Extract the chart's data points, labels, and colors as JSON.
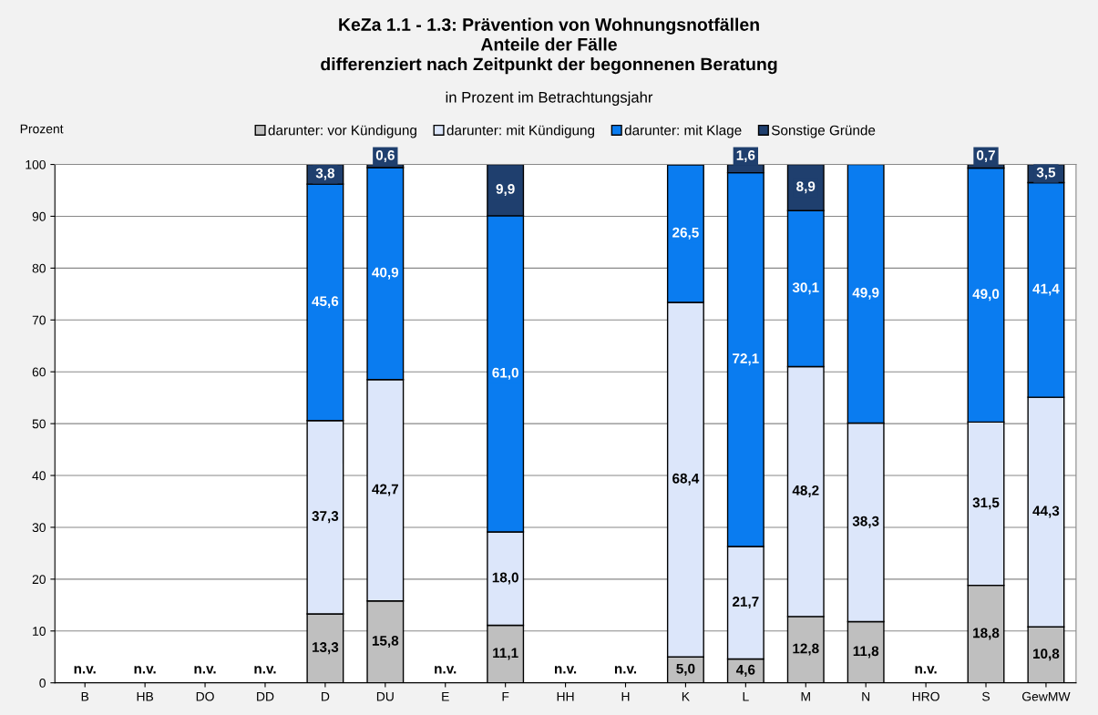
{
  "chart_data": {
    "type": "bar",
    "stacked": true,
    "title": "KeZa 1.1 - 1.3: Prävention von Wohnungsnotfällen\nAnteile der Fälle\ndifferenziert nach Zeitpunkt der begonnenen Beratung",
    "subtitle": "in Prozent im Betrachtungsjahr",
    "ylabel": "Prozent",
    "categories": [
      "B",
      "HB",
      "DO",
      "DD",
      "D",
      "DU",
      "E",
      "F",
      "HH",
      "H",
      "K",
      "L",
      "M",
      "N",
      "HRO",
      "S",
      "GewMW"
    ],
    "series": [
      {
        "name": "darunter: vor Kündigung",
        "color": "#bfbfbf",
        "values": [
          null,
          null,
          null,
          null,
          13.3,
          15.8,
          null,
          11.1,
          null,
          null,
          5.0,
          4.6,
          12.8,
          11.8,
          null,
          18.8,
          10.8
        ],
        "value_labels": [
          "n.v.",
          "n.v.",
          "n.v.",
          "n.v.",
          "13,3",
          "15,8",
          "n.v.",
          "11,1",
          "n.v.",
          "n.v.",
          "5,0",
          "4,6",
          "12,8",
          "11,8",
          "n.v.",
          "18,8",
          "10,8"
        ]
      },
      {
        "name": "darunter: mit Kündigung",
        "color": "#dce6fa",
        "values": [
          null,
          null,
          null,
          null,
          37.3,
          42.7,
          null,
          18.0,
          null,
          null,
          68.4,
          21.7,
          48.2,
          38.3,
          null,
          31.5,
          44.3
        ],
        "value_labels": [
          null,
          null,
          null,
          null,
          "37,3",
          "42,7",
          null,
          "18,0",
          null,
          null,
          "68,4",
          "21,7",
          "48,2",
          "38,3",
          null,
          "31,5",
          "44,3"
        ]
      },
      {
        "name": "darunter: mit Klage",
        "color": "#0a7cf0",
        "values": [
          null,
          null,
          null,
          null,
          45.6,
          40.9,
          null,
          61.0,
          null,
          null,
          26.5,
          72.1,
          30.1,
          49.9,
          null,
          49.0,
          41.4
        ],
        "value_labels": [
          null,
          null,
          null,
          null,
          "45,6",
          "40,9",
          null,
          "61,0",
          null,
          null,
          "26,5",
          "72,1",
          "30,1",
          "49,9",
          null,
          "49,0",
          "41,4"
        ]
      },
      {
        "name": "Sonstige Gründe",
        "color": "#1f3f6e",
        "values": [
          null,
          null,
          null,
          null,
          3.8,
          0.6,
          null,
          9.9,
          null,
          null,
          null,
          1.6,
          8.9,
          null,
          null,
          0.7,
          3.5
        ],
        "value_labels": [
          null,
          null,
          null,
          null,
          "3,8",
          "0,6",
          null,
          "9,9",
          null,
          null,
          null,
          "1,6",
          "8,9",
          null,
          null,
          "0,7",
          "3,5"
        ]
      }
    ],
    "ylim": [
      0,
      100
    ],
    "yticks": [
      0,
      10,
      20,
      30,
      40,
      50,
      60,
      70,
      80,
      90,
      100
    ],
    "grid": "y",
    "legend": "top"
  }
}
